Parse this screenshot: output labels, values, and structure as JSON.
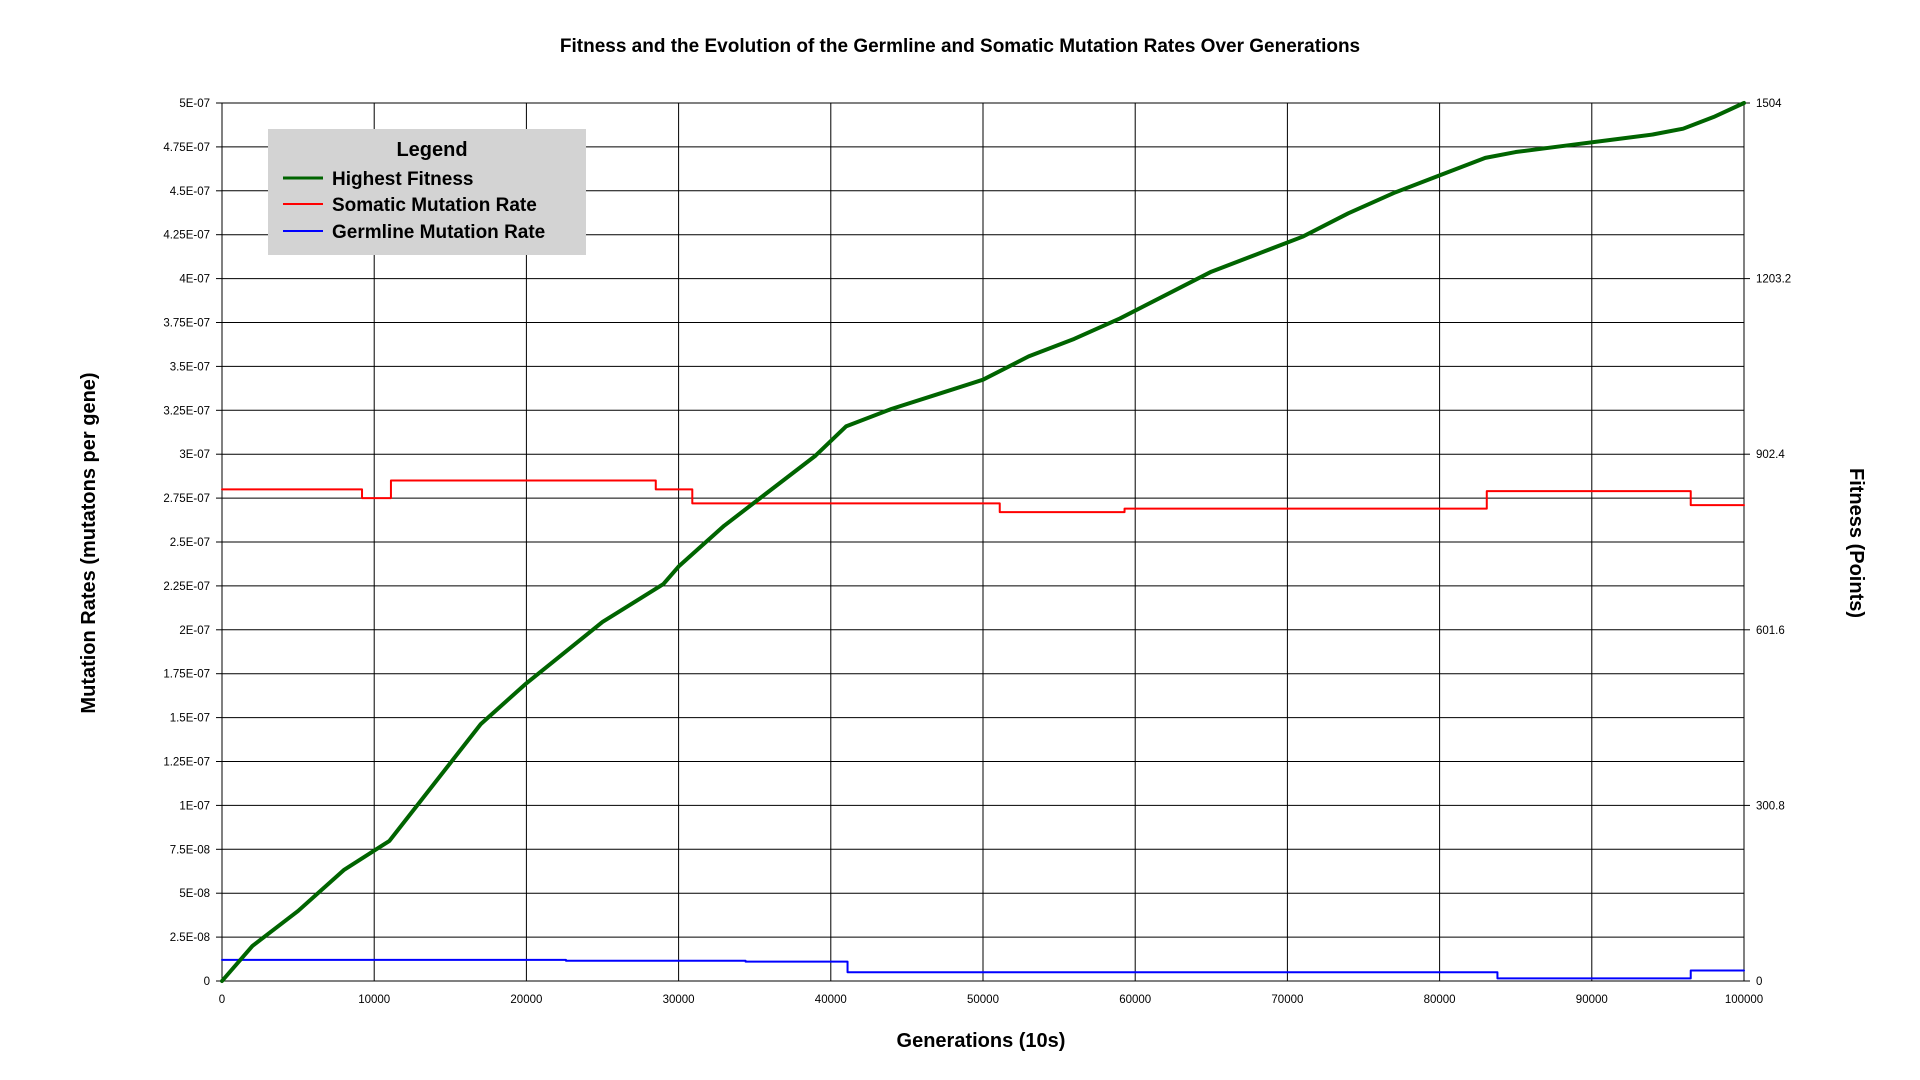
{
  "chart_data": {
    "type": "line",
    "title": "Fitness and the Evolution of the Germline and Somatic Mutation Rates Over Generations",
    "xlabel": "Generations (10s)",
    "ylabel_left": "Mutation Rates (mutatons per gene)",
    "ylabel_right": "Fitness (Points)",
    "xlim": [
      0,
      100000
    ],
    "ylim_left": [
      0,
      5e-07
    ],
    "ylim_right": [
      0,
      1504
    ],
    "grid": true,
    "legend_placement": "top-left",
    "x_tick_labels": [
      "0",
      "10000",
      "20000",
      "30000",
      "40000",
      "50000",
      "60000",
      "70000",
      "80000",
      "90000",
      "100000"
    ],
    "y_left_tick_labels": [
      "0",
      "2.5E-08",
      "5E-08",
      "7.5E-08",
      "1E-07",
      "1.25E-07",
      "1.5E-07",
      "1.75E-07",
      "2E-07",
      "2.25E-07",
      "2.5E-07",
      "2.75E-07",
      "3E-07",
      "3.25E-07",
      "3.5E-07",
      "3.75E-07",
      "4E-07",
      "4.25E-07",
      "4.5E-07",
      "4.75E-07",
      "5E-07"
    ],
    "y_right_tick_labels": [
      "0",
      "300.8",
      "601.6",
      "902.4",
      "1203.2",
      "1504"
    ],
    "legend_title": "Legend",
    "series": [
      {
        "name": "Highest Fitness",
        "axis": "right",
        "color": "#006400",
        "step": false,
        "x": [
          0,
          2000,
          5000,
          8000,
          11000,
          14000,
          17000,
          20000,
          25000,
          29000,
          30000,
          33000,
          36000,
          39000,
          41000,
          44000,
          47000,
          50000,
          53000,
          56000,
          59000,
          62000,
          65000,
          68000,
          71000,
          74000,
          77000,
          80000,
          83000,
          85000,
          88000,
          91000,
          94000,
          96000,
          98000,
          100000
        ],
        "y": [
          0,
          60,
          120,
          190,
          240,
          340,
          440,
          510,
          615,
          680,
          710,
          780,
          840,
          900,
          950,
          980,
          1005,
          1030,
          1070,
          1100,
          1135,
          1175,
          1215,
          1245,
          1275,
          1315,
          1350,
          1380,
          1410,
          1420,
          1430,
          1440,
          1450,
          1460,
          1480,
          1504
        ]
      },
      {
        "name": "Somatic Mutation Rate",
        "axis": "left",
        "color": "#ff0000",
        "step": true,
        "x": [
          0,
          9200,
          11100,
          28500,
          30900,
          51100,
          59300,
          83100,
          96500,
          100000
        ],
        "y": [
          2.8e-07,
          2.75e-07,
          2.85e-07,
          2.8e-07,
          2.72e-07,
          2.67e-07,
          2.69e-07,
          2.79e-07,
          2.71e-07,
          2.71e-07
        ]
      },
      {
        "name": "Germline Mutation Rate",
        "axis": "left",
        "color": "#0000ff",
        "step": true,
        "x": [
          0,
          22600,
          34400,
          41100,
          83800,
          96500,
          100000
        ],
        "y": [
          1.2e-08,
          1.15e-08,
          1.1e-08,
          5e-09,
          1.5e-09,
          6e-09,
          6e-09
        ]
      }
    ]
  }
}
